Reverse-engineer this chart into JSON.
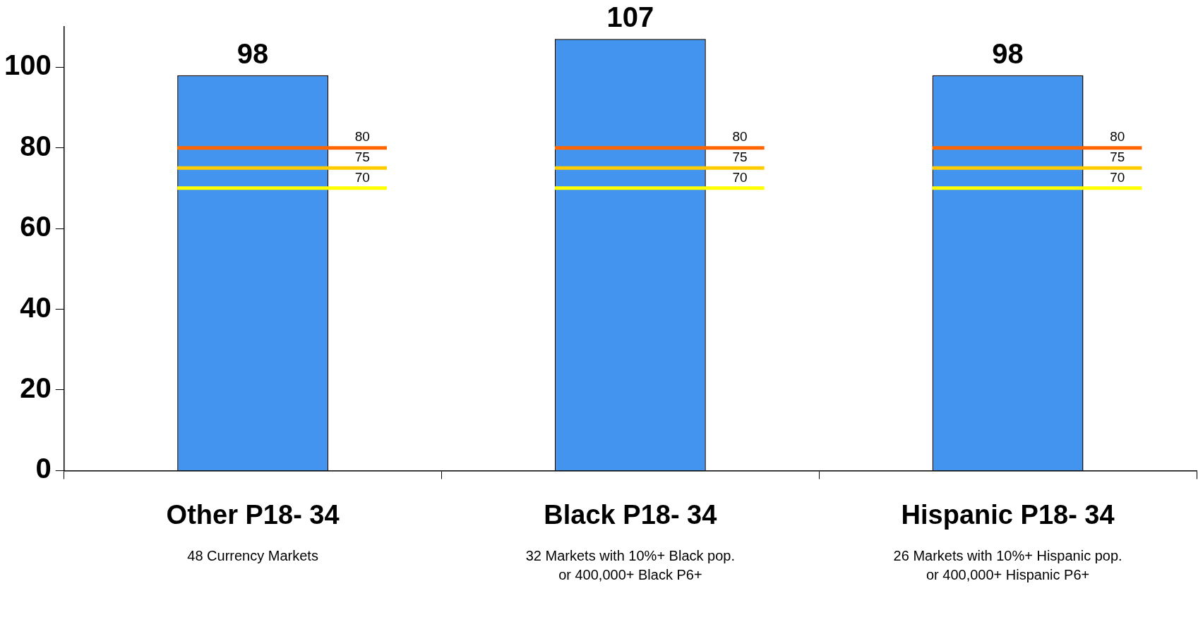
{
  "chart_data": {
    "type": "bar",
    "categories": [
      "Other P18- 34",
      "Black P18- 34",
      "Hispanic P18- 34"
    ],
    "series": [
      {
        "color": "#4394ee",
        "values": [
          98,
          107,
          98
        ]
      }
    ],
    "ref_lines": [
      {
        "axis": "y",
        "value": 80,
        "label": "80",
        "color": "#ff6600"
      },
      {
        "axis": "y",
        "value": 75,
        "label": "75",
        "color": "#ffcc00"
      },
      {
        "axis": "y",
        "value": 70,
        "label": "70",
        "color": "#ffff00"
      }
    ],
    "ylim": [
      0,
      110
    ],
    "yticks": [
      0,
      20,
      40,
      60,
      80,
      100
    ],
    "grid": false,
    "legend": false,
    "data_labels": true,
    "annotations": [
      "48 Currency Markets",
      "32 Markets with 10%+ Black pop.\nor 400,000+ Black P6+",
      "26 Markets with 10%+ Hispanic pop.\nor 400,000+ Hispanic P6+"
    ]
  }
}
